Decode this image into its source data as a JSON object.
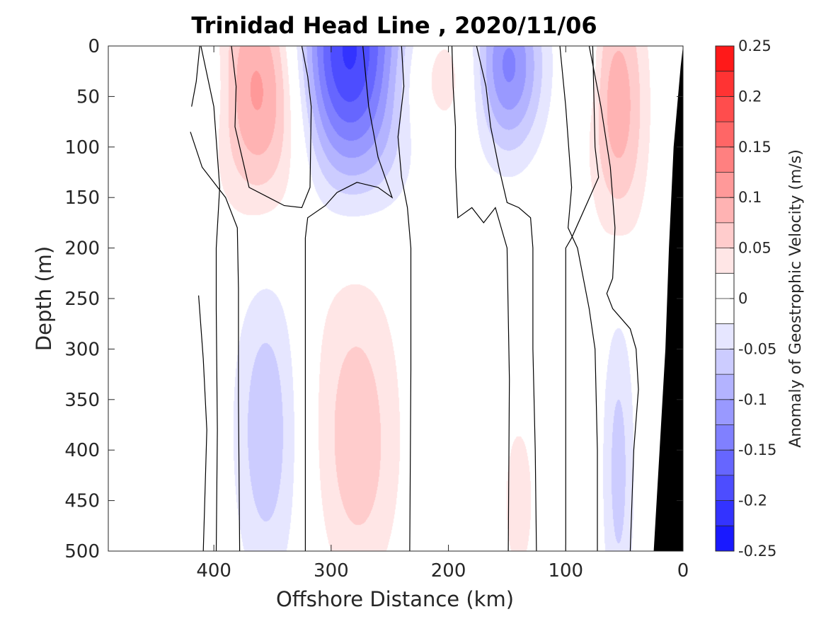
{
  "chart_data": {
    "type": "heatmap",
    "subtype": "filled-contour",
    "title": "Trinidad Head Line , 2020/11/06",
    "xlabel": "Offshore Distance (km)",
    "ylabel": "Depth (m)",
    "xlim": [
      490,
      0
    ],
    "ylim": [
      0,
      500
    ],
    "x_reversed": true,
    "y_reversed": true,
    "x_ticks": [
      400,
      300,
      200,
      100,
      0
    ],
    "y_ticks": [
      0,
      50,
      100,
      150,
      200,
      250,
      300,
      350,
      400,
      450,
      500
    ],
    "colorbar": {
      "label": "Anomaly of Geostrophic Velocity (m/s)",
      "range": [
        -0.25,
        0.25
      ],
      "ticks": [
        0.25,
        0.2,
        0.15,
        0.1,
        0.05,
        0,
        -0.05,
        -0.1,
        -0.15,
        -0.2,
        -0.25
      ],
      "tick_labels": [
        "0.25",
        "0.2",
        "0.15",
        "0.1",
        "0.05",
        "0",
        "-0.05",
        "-0.1",
        "-0.15",
        "-0.2",
        "-0.25"
      ],
      "levels": [
        0.25,
        0.225,
        0.2,
        0.175,
        0.15,
        0.125,
        0.1,
        0.075,
        0.05,
        0.025,
        0,
        -0.025,
        -0.05,
        -0.075,
        -0.1,
        -0.125,
        -0.15,
        -0.175,
        -0.2,
        -0.225,
        -0.25
      ],
      "colormap": "blue-white-red",
      "color_positive": "#ff0000",
      "color_negative": "#0000ff",
      "color_zero": "#ffffff"
    },
    "features": [
      {
        "kind": "negative",
        "x": 400,
        "y": 40,
        "rx": 16,
        "ry": 65,
        "max": 0.03
      },
      {
        "kind": "positive",
        "x": 355,
        "y": 40,
        "rx": 42,
        "ry": 120,
        "max": 0.13
      },
      {
        "kind": "negative",
        "x": 285,
        "y": 10,
        "rx": 52,
        "ry": 125,
        "max": 0.22
      },
      {
        "kind": "positive",
        "x": 215,
        "y": 30,
        "rx": 50,
        "ry": 70,
        "max": 0.06
      },
      {
        "kind": "negative",
        "x": 150,
        "y": 20,
        "rx": 30,
        "ry": 85,
        "max": 0.14
      },
      {
        "kind": "negative",
        "x": 82,
        "y": 15,
        "rx": 10,
        "ry": 55,
        "max": 0.03
      },
      {
        "kind": "positive",
        "x": 55,
        "y": 60,
        "rx": 24,
        "ry": 130,
        "max": 0.09
      },
      {
        "kind": "negative",
        "x": 355,
        "y": 380,
        "rx": 28,
        "ry": 160,
        "max": 0.07
      },
      {
        "kind": "positive",
        "x": 280,
        "y": 340,
        "rx": 40,
        "ry": 170,
        "max": 0.045
      },
      {
        "kind": "positive",
        "x": 275,
        "y": 430,
        "rx": 32,
        "ry": 120,
        "max": 0.03
      },
      {
        "kind": "positive",
        "x": 140,
        "y": 450,
        "rx": 18,
        "ry": 110,
        "max": 0.035
      },
      {
        "kind": "negative",
        "x": 55,
        "y": 420,
        "rx": 14,
        "ry": 170,
        "max": 0.06
      }
    ],
    "zero_contours": [
      {
        "points": [
          [
            419,
            60
          ],
          [
            415,
            35
          ],
          [
            412,
            0
          ]
        ]
      },
      {
        "points": [
          [
            420,
            85
          ],
          [
            410,
            120
          ],
          [
            390,
            150
          ],
          [
            380,
            180
          ],
          [
            379,
            240
          ],
          [
            379,
            350
          ],
          [
            378,
            500
          ]
        ]
      },
      {
        "points": [
          [
            411,
            0
          ],
          [
            400,
            60
          ],
          [
            395,
            140
          ],
          [
            398,
            200
          ],
          [
            398,
            260
          ],
          [
            397,
            380
          ],
          [
            398,
            500
          ]
        ]
      },
      {
        "points": [
          [
            385,
            0
          ],
          [
            381,
            40
          ],
          [
            382,
            80
          ],
          [
            370,
            140
          ],
          [
            340,
            158
          ],
          [
            325,
            160
          ],
          [
            318,
            140
          ],
          [
            317,
            60
          ],
          [
            320,
            30
          ],
          [
            325,
            0
          ]
        ]
      },
      {
        "points": [
          [
            413,
            247
          ],
          [
            409,
            310
          ],
          [
            406,
            380
          ],
          [
            408,
            460
          ],
          [
            409,
            500
          ]
        ]
      },
      {
        "points": [
          [
            273,
            0
          ],
          [
            268,
            60
          ],
          [
            260,
            110
          ],
          [
            248,
            150
          ],
          [
            260,
            140
          ],
          [
            278,
            135
          ],
          [
            295,
            145
          ],
          [
            305,
            158
          ],
          [
            320,
            170
          ],
          [
            322,
            190
          ],
          [
            322,
            320
          ],
          [
            322,
            500
          ]
        ]
      },
      {
        "points": [
          [
            240,
            0
          ],
          [
            238,
            40
          ],
          [
            243,
            90
          ],
          [
            240,
            130
          ],
          [
            235,
            160
          ],
          [
            232,
            200
          ],
          [
            232,
            320
          ],
          [
            233,
            500
          ]
        ]
      },
      {
        "points": [
          [
            176,
            0
          ],
          [
            168,
            40
          ],
          [
            164,
            80
          ],
          [
            157,
            120
          ],
          [
            150,
            155
          ],
          [
            140,
            160
          ],
          [
            130,
            170
          ],
          [
            128,
            200
          ],
          [
            128,
            300
          ],
          [
            126,
            400
          ],
          [
            125,
            500
          ]
        ]
      },
      {
        "points": [
          [
            197,
            0
          ],
          [
            196,
            40
          ],
          [
            194,
            80
          ],
          [
            194,
            120
          ],
          [
            192,
            170
          ],
          [
            180,
            160
          ],
          [
            170,
            175
          ],
          [
            160,
            160
          ],
          [
            150,
            200
          ],
          [
            148,
            330
          ],
          [
            149,
            500
          ]
        ]
      },
      {
        "points": [
          [
            105,
            0
          ],
          [
            100,
            60
          ],
          [
            95,
            140
          ],
          [
            98,
            180
          ],
          [
            90,
            200
          ],
          [
            80,
            260
          ],
          [
            75,
            300
          ],
          [
            73,
            400
          ],
          [
            73,
            500
          ]
        ]
      },
      {
        "points": [
          [
            77,
            0
          ],
          [
            75,
            100
          ],
          [
            72,
            130
          ],
          [
            95,
            190
          ],
          [
            100,
            200
          ],
          [
            100,
            320
          ],
          [
            100,
            500
          ]
        ]
      },
      {
        "points": [
          [
            80,
            0
          ],
          [
            70,
            60
          ],
          [
            62,
            120
          ],
          [
            58,
            180
          ],
          [
            60,
            230
          ],
          [
            65,
            245
          ],
          [
            60,
            260
          ],
          [
            45,
            280
          ],
          [
            40,
            300
          ],
          [
            38,
            340
          ],
          [
            42,
            400
          ],
          [
            45,
            500
          ]
        ]
      }
    ],
    "land_mask": {
      "color": "#000000",
      "points": [
        [
          0,
          0
        ],
        [
          2,
          20
        ],
        [
          5,
          60
        ],
        [
          8,
          100
        ],
        [
          12,
          200
        ],
        [
          15,
          300
        ],
        [
          20,
          400
        ],
        [
          25,
          500
        ],
        [
          0,
          500
        ]
      ]
    }
  }
}
